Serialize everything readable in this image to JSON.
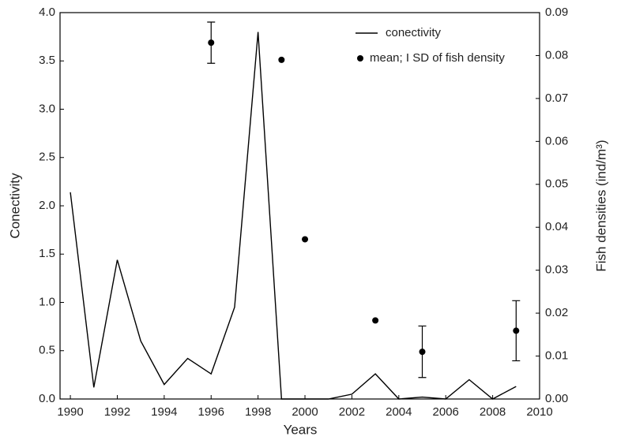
{
  "chart_data": {
    "type": "line",
    "xlabel": "Years",
    "ylabel": "Conectivity",
    "y2label": "Fish densities (ind/m³)",
    "x": [
      1990,
      1991,
      1992,
      1993,
      1994,
      1995,
      1996,
      1997,
      1998,
      1999,
      2000,
      2001,
      2002,
      2003,
      2004,
      2005,
      2006,
      2007,
      2008,
      2009
    ],
    "series": [
      {
        "name": "conectivity",
        "color": "#000000",
        "kind": "line",
        "values": [
          2.14,
          0.12,
          1.44,
          0.6,
          0.15,
          0.42,
          0.26,
          0.95,
          3.8,
          0,
          0,
          0,
          0.05,
          0.26,
          0,
          0.02,
          0,
          0.2,
          0,
          0.13
        ]
      },
      {
        "name": "mean; I SD of fish density",
        "color": "#000000",
        "kind": "points",
        "axis": "y2",
        "values": [
          null,
          null,
          null,
          null,
          null,
          null,
          0.083,
          null,
          null,
          0.079,
          0.0372,
          null,
          null,
          0.0183,
          null,
          0.011,
          null,
          null,
          null,
          0.0159
        ],
        "errors": [
          null,
          null,
          null,
          null,
          null,
          null,
          0.0048,
          null,
          null,
          null,
          null,
          null,
          null,
          null,
          null,
          0.006,
          null,
          null,
          null,
          0.007
        ]
      }
    ],
    "xlim": [
      1989.56,
      2010
    ],
    "xticks": [
      1990,
      1992,
      1994,
      1996,
      1998,
      2000,
      2002,
      2004,
      2006,
      2008,
      2010
    ],
    "ylim": [
      0,
      4
    ],
    "yticks": [
      {
        "value": 0,
        "label": "0.0"
      },
      {
        "value": 0.5,
        "label": "0.5"
      },
      {
        "value": 1,
        "label": "1.0"
      },
      {
        "value": 1.5,
        "label": "1.5"
      },
      {
        "value": 2,
        "label": "2.0"
      },
      {
        "value": 2.5,
        "label": "2.5"
      },
      {
        "value": 3,
        "label": "3.0"
      },
      {
        "value": 3.5,
        "label": "3.5"
      },
      {
        "value": 4,
        "label": "4.0"
      }
    ],
    "y2lim": [
      0,
      0.09
    ],
    "y2ticks": [
      {
        "value": 0,
        "label": "0.00"
      },
      {
        "value": 0.01,
        "label": "0.01"
      },
      {
        "value": 0.02,
        "label": "0.02"
      },
      {
        "value": 0.03,
        "label": "0.03"
      },
      {
        "value": 0.04,
        "label": "0.04"
      },
      {
        "value": 0.05,
        "label": "0.05"
      },
      {
        "value": 0.06,
        "label": "0.06"
      },
      {
        "value": 0.07,
        "label": "0.07"
      },
      {
        "value": 0.08,
        "label": "0.08"
      },
      {
        "value": 0.09,
        "label": "0.09"
      }
    ],
    "grid": false,
    "legend": "top-right"
  }
}
